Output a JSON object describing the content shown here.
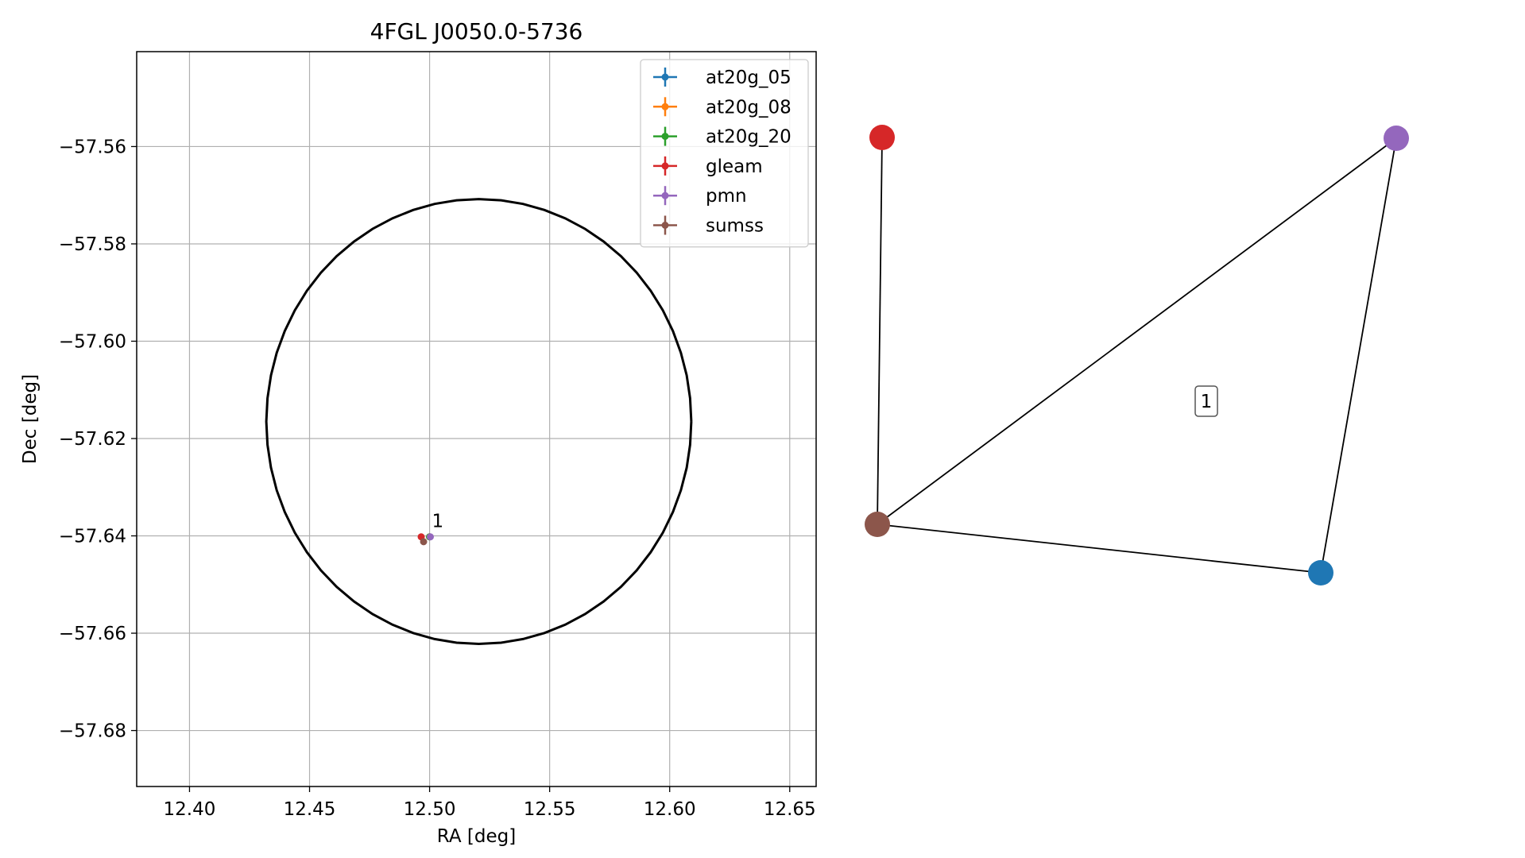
{
  "chart_data": [
    {
      "type": "scatter",
      "title": "4FGL J0050.0-5736",
      "xlabel": "RA [deg]",
      "ylabel": "Dec [deg]",
      "xlim": [
        12.378,
        12.661
      ],
      "ylim": [
        -57.6915,
        -57.5405
      ],
      "xticks": [
        12.4,
        12.45,
        12.5,
        12.55,
        12.6,
        12.65
      ],
      "xtick_labels": [
        "12.40",
        "12.45",
        "12.50",
        "12.55",
        "12.60",
        "12.65"
      ],
      "yticks": [
        -57.56,
        -57.58,
        -57.6,
        -57.62,
        -57.64,
        -57.66,
        -57.68
      ],
      "ytick_labels": [
        "−57.56",
        "−57.58",
        "−57.60",
        "−57.62",
        "−57.64",
        "−57.66",
        "−57.68"
      ],
      "grid": true,
      "legend_position": "top-right",
      "series": [
        {
          "name": "at20g_05",
          "color": "#1f77b4",
          "x": [
            12.5
          ],
          "y": [
            -57.6402
          ]
        },
        {
          "name": "at20g_08",
          "color": "#ff7f0e",
          "x": [
            12.5
          ],
          "y": [
            -57.6402
          ]
        },
        {
          "name": "at20g_20",
          "color": "#2ca02c",
          "x": [
            12.5
          ],
          "y": [
            -57.6402
          ]
        },
        {
          "name": "gleam",
          "color": "#d62728",
          "x": [
            12.4965
          ],
          "y": [
            -57.6402
          ]
        },
        {
          "name": "pmn",
          "color": "#9467bd",
          "x": [
            12.5003
          ],
          "y": [
            -57.6402
          ]
        },
        {
          "name": "sumss",
          "color": "#8c564b",
          "x": [
            12.4975
          ],
          "y": [
            -57.6412
          ]
        }
      ],
      "annotations": [
        {
          "text": "1",
          "x": 12.5003,
          "y": -57.6385
        }
      ],
      "ellipse": {
        "center": [
          12.5205,
          -57.6165
        ],
        "half_width_ra": 0.0885,
        "half_height_dec": 0.0457,
        "color": "#000000"
      }
    },
    {
      "type": "network",
      "nodes": [
        {
          "id": "gleam",
          "color": "#d62728"
        },
        {
          "id": "pmn",
          "color": "#9467bd"
        },
        {
          "id": "sumss",
          "color": "#8c564b"
        },
        {
          "id": "at20g",
          "color": "#1f77b4"
        }
      ],
      "edges": [
        [
          "gleam",
          "sumss"
        ],
        [
          "sumss",
          "pmn"
        ],
        [
          "sumss",
          "at20g"
        ],
        [
          "pmn",
          "at20g"
        ]
      ],
      "cluster_label": "1"
    }
  ]
}
